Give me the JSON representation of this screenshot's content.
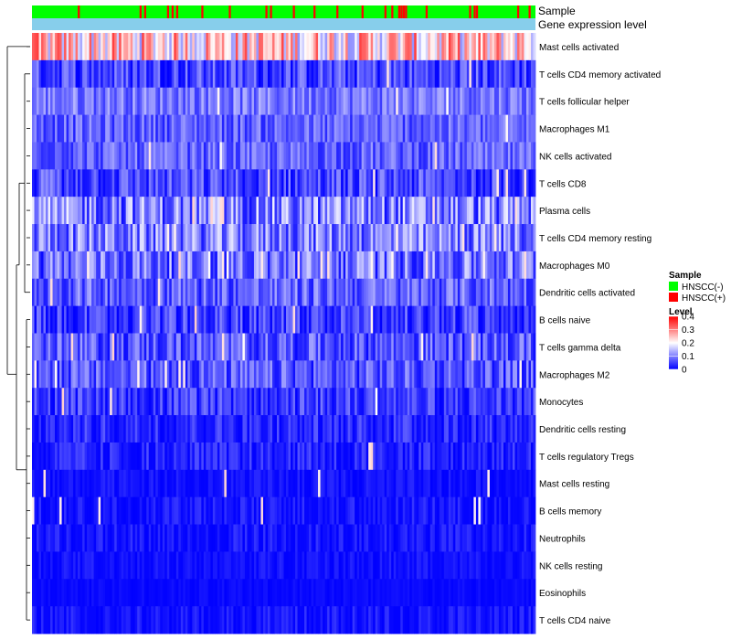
{
  "chart_data": {
    "type": "heatmap",
    "annotation_labels": [
      "Sample",
      "Gene expression level"
    ],
    "rows": [
      {
        "label": "Mast cells activated",
        "mean": 0.22,
        "spread": 0.12,
        "white_rate": 0.03
      },
      {
        "label": "T cells CD4 memory activated",
        "mean": 0.05,
        "spread": 0.06,
        "white_rate": 0.01
      },
      {
        "label": "T cells follicular helper",
        "mean": 0.09,
        "spread": 0.05,
        "white_rate": 0.02
      },
      {
        "label": "Macrophages M1",
        "mean": 0.07,
        "spread": 0.05,
        "white_rate": 0.01
      },
      {
        "label": "NK cells activated",
        "mean": 0.07,
        "spread": 0.05,
        "white_rate": 0.01
      },
      {
        "label": "T cells CD8",
        "mean": 0.05,
        "spread": 0.06,
        "white_rate": 0.02
      },
      {
        "label": "Plasma cells",
        "mean": 0.09,
        "spread": 0.09,
        "white_rate": 0.04
      },
      {
        "label": "T cells CD4 memory resting",
        "mean": 0.09,
        "spread": 0.08,
        "white_rate": 0.04
      },
      {
        "label": "Macrophages M0",
        "mean": 0.08,
        "spread": 0.08,
        "white_rate": 0.03
      },
      {
        "label": "Dendritic cells activated",
        "mean": 0.07,
        "spread": 0.06,
        "white_rate": 0.01
      },
      {
        "label": "B cells naive",
        "mean": 0.04,
        "spread": 0.06,
        "white_rate": 0.01
      },
      {
        "label": "T cells gamma delta",
        "mean": 0.06,
        "spread": 0.06,
        "white_rate": 0.02
      },
      {
        "label": "Macrophages M2",
        "mean": 0.06,
        "spread": 0.06,
        "white_rate": 0.02
      },
      {
        "label": "Monocytes",
        "mean": 0.04,
        "spread": 0.05,
        "white_rate": 0.01
      },
      {
        "label": "Dendritic cells resting",
        "mean": 0.03,
        "spread": 0.04,
        "white_rate": 0.0
      },
      {
        "label": "T cells regulatory  Tregs",
        "mean": 0.02,
        "spread": 0.04,
        "white_rate": 0.01
      },
      {
        "label": "Mast cells resting",
        "mean": 0.01,
        "spread": 0.02,
        "white_rate": 0.01
      },
      {
        "label": "B cells memory",
        "mean": 0.01,
        "spread": 0.03,
        "white_rate": 0.01
      },
      {
        "label": "Neutrophils",
        "mean": 0.01,
        "spread": 0.03,
        "white_rate": 0.0
      },
      {
        "label": "NK cells resting",
        "mean": 0.01,
        "spread": 0.02,
        "white_rate": 0.0
      },
      {
        "label": "Eosinophils",
        "mean": 0.005,
        "spread": 0.01,
        "white_rate": 0.0
      },
      {
        "label": "T cells CD4 naive",
        "mean": 0.01,
        "spread": 0.03,
        "white_rate": 0.0
      }
    ],
    "n_samples": 220,
    "hnscc_pos_fraction": 0.14,
    "value_range": [
      0,
      0.4
    ],
    "color_scale": {
      "low": "#0000ff",
      "mid": "#ffffff",
      "high": "#ff0000",
      "mid_value": 0.2
    },
    "legend": {
      "sample_title": "Sample",
      "sample_items": [
        {
          "label": "HNSCC(-)",
          "color": "#00ff00"
        },
        {
          "label": "HNSCC(+)",
          "color": "#ff0000"
        }
      ],
      "level_title": "Level",
      "level_ticks": [
        "0.4",
        "0.3",
        "0.2",
        "0.1",
        "0"
      ],
      "level_values": [
        0.4,
        0.3,
        0.2,
        0.1,
        0
      ]
    },
    "sample_colors": {
      "neg": "#00ff00",
      "pos": "#ff0000"
    },
    "gene_expression_color": "#87ceeb",
    "legend_position": "right"
  }
}
